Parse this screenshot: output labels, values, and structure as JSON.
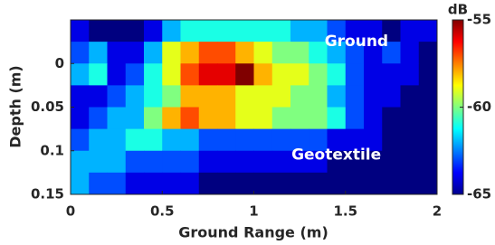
{
  "chart_data": {
    "type": "heatmap",
    "xlabel": "Ground Range (m)",
    "ylabel": "Depth (m)",
    "colorbar_label": "dB",
    "colormap": "jet",
    "annotations": [
      {
        "text": "Ground",
        "x": 1.56,
        "y": -0.025
      },
      {
        "text": "Geotextile",
        "x": 1.45,
        "y": 0.105
      }
    ],
    "x": [
      0.05,
      0.15,
      0.25,
      0.35,
      0.45,
      0.55,
      0.65,
      0.75,
      0.85,
      0.95,
      1.05,
      1.15,
      1.25,
      1.35,
      1.45,
      1.55,
      1.65,
      1.75,
      1.85,
      1.95
    ],
    "y": [
      -0.0375,
      -0.0125,
      0.0125,
      0.0375,
      0.0625,
      0.0875,
      0.1125,
      0.1375
    ],
    "z": [
      [
        -64,
        -65,
        -65,
        -65,
        -64,
        -62,
        -61,
        -61,
        -61,
        -61,
        -61,
        -61,
        -62,
        -62,
        -63,
        -64,
        -64,
        -65,
        -64,
        -64
      ],
      [
        -63,
        -62,
        -64,
        -64,
        -62,
        -59,
        -58,
        -57,
        -57,
        -58,
        -59,
        -60,
        -60,
        -61,
        -62,
        -63,
        -64,
        -63,
        -64,
        -65
      ],
      [
        -62,
        -61,
        -64,
        -63,
        -61,
        -59,
        -57,
        -56,
        -56,
        -55,
        -58,
        -59,
        -59,
        -60,
        -61,
        -63,
        -64,
        -64,
        -64,
        -65
      ],
      [
        -64,
        -64,
        -63,
        -62,
        -61,
        -60,
        -58,
        -58,
        -58,
        -59,
        -59,
        -59,
        -60,
        -60,
        -62,
        -63,
        -64,
        -64,
        -65,
        -65
      ],
      [
        -64,
        -63,
        -62,
        -62,
        -60,
        -58,
        -57,
        -58,
        -58,
        -59,
        -59,
        -60,
        -60,
        -60,
        -61,
        -63,
        -64,
        -65,
        -65,
        -65
      ],
      [
        -63,
        -62,
        -62,
        -61,
        -61,
        -62,
        -62,
        -63,
        -63,
        -63,
        -63,
        -63,
        -63,
        -63,
        -64,
        -64,
        -64,
        -65,
        -65,
        -65
      ],
      [
        -62,
        -62,
        -62,
        -63,
        -63,
        -63,
        -63,
        -64,
        -64,
        -64,
        -64,
        -64,
        -64,
        -64,
        -65,
        -65,
        -65,
        -65,
        -65,
        -65
      ],
      [
        -62,
        -63,
        -63,
        -64,
        -64,
        -64,
        -64,
        -65,
        -65,
        -65,
        -65,
        -65,
        -65,
        -65,
        -65,
        -65,
        -65,
        -65,
        -65,
        -65
      ]
    ],
    "xlim": [
      0,
      2
    ],
    "xticks": [
      0,
      0.5,
      1,
      1.5,
      2
    ],
    "ylim": [
      -0.05,
      0.15
    ],
    "yticks": [
      0,
      0.05,
      0.1,
      0.15
    ],
    "y_reversed": true,
    "clim": [
      -65,
      -55
    ],
    "cticks": [
      -55,
      -60,
      -65
    ]
  }
}
